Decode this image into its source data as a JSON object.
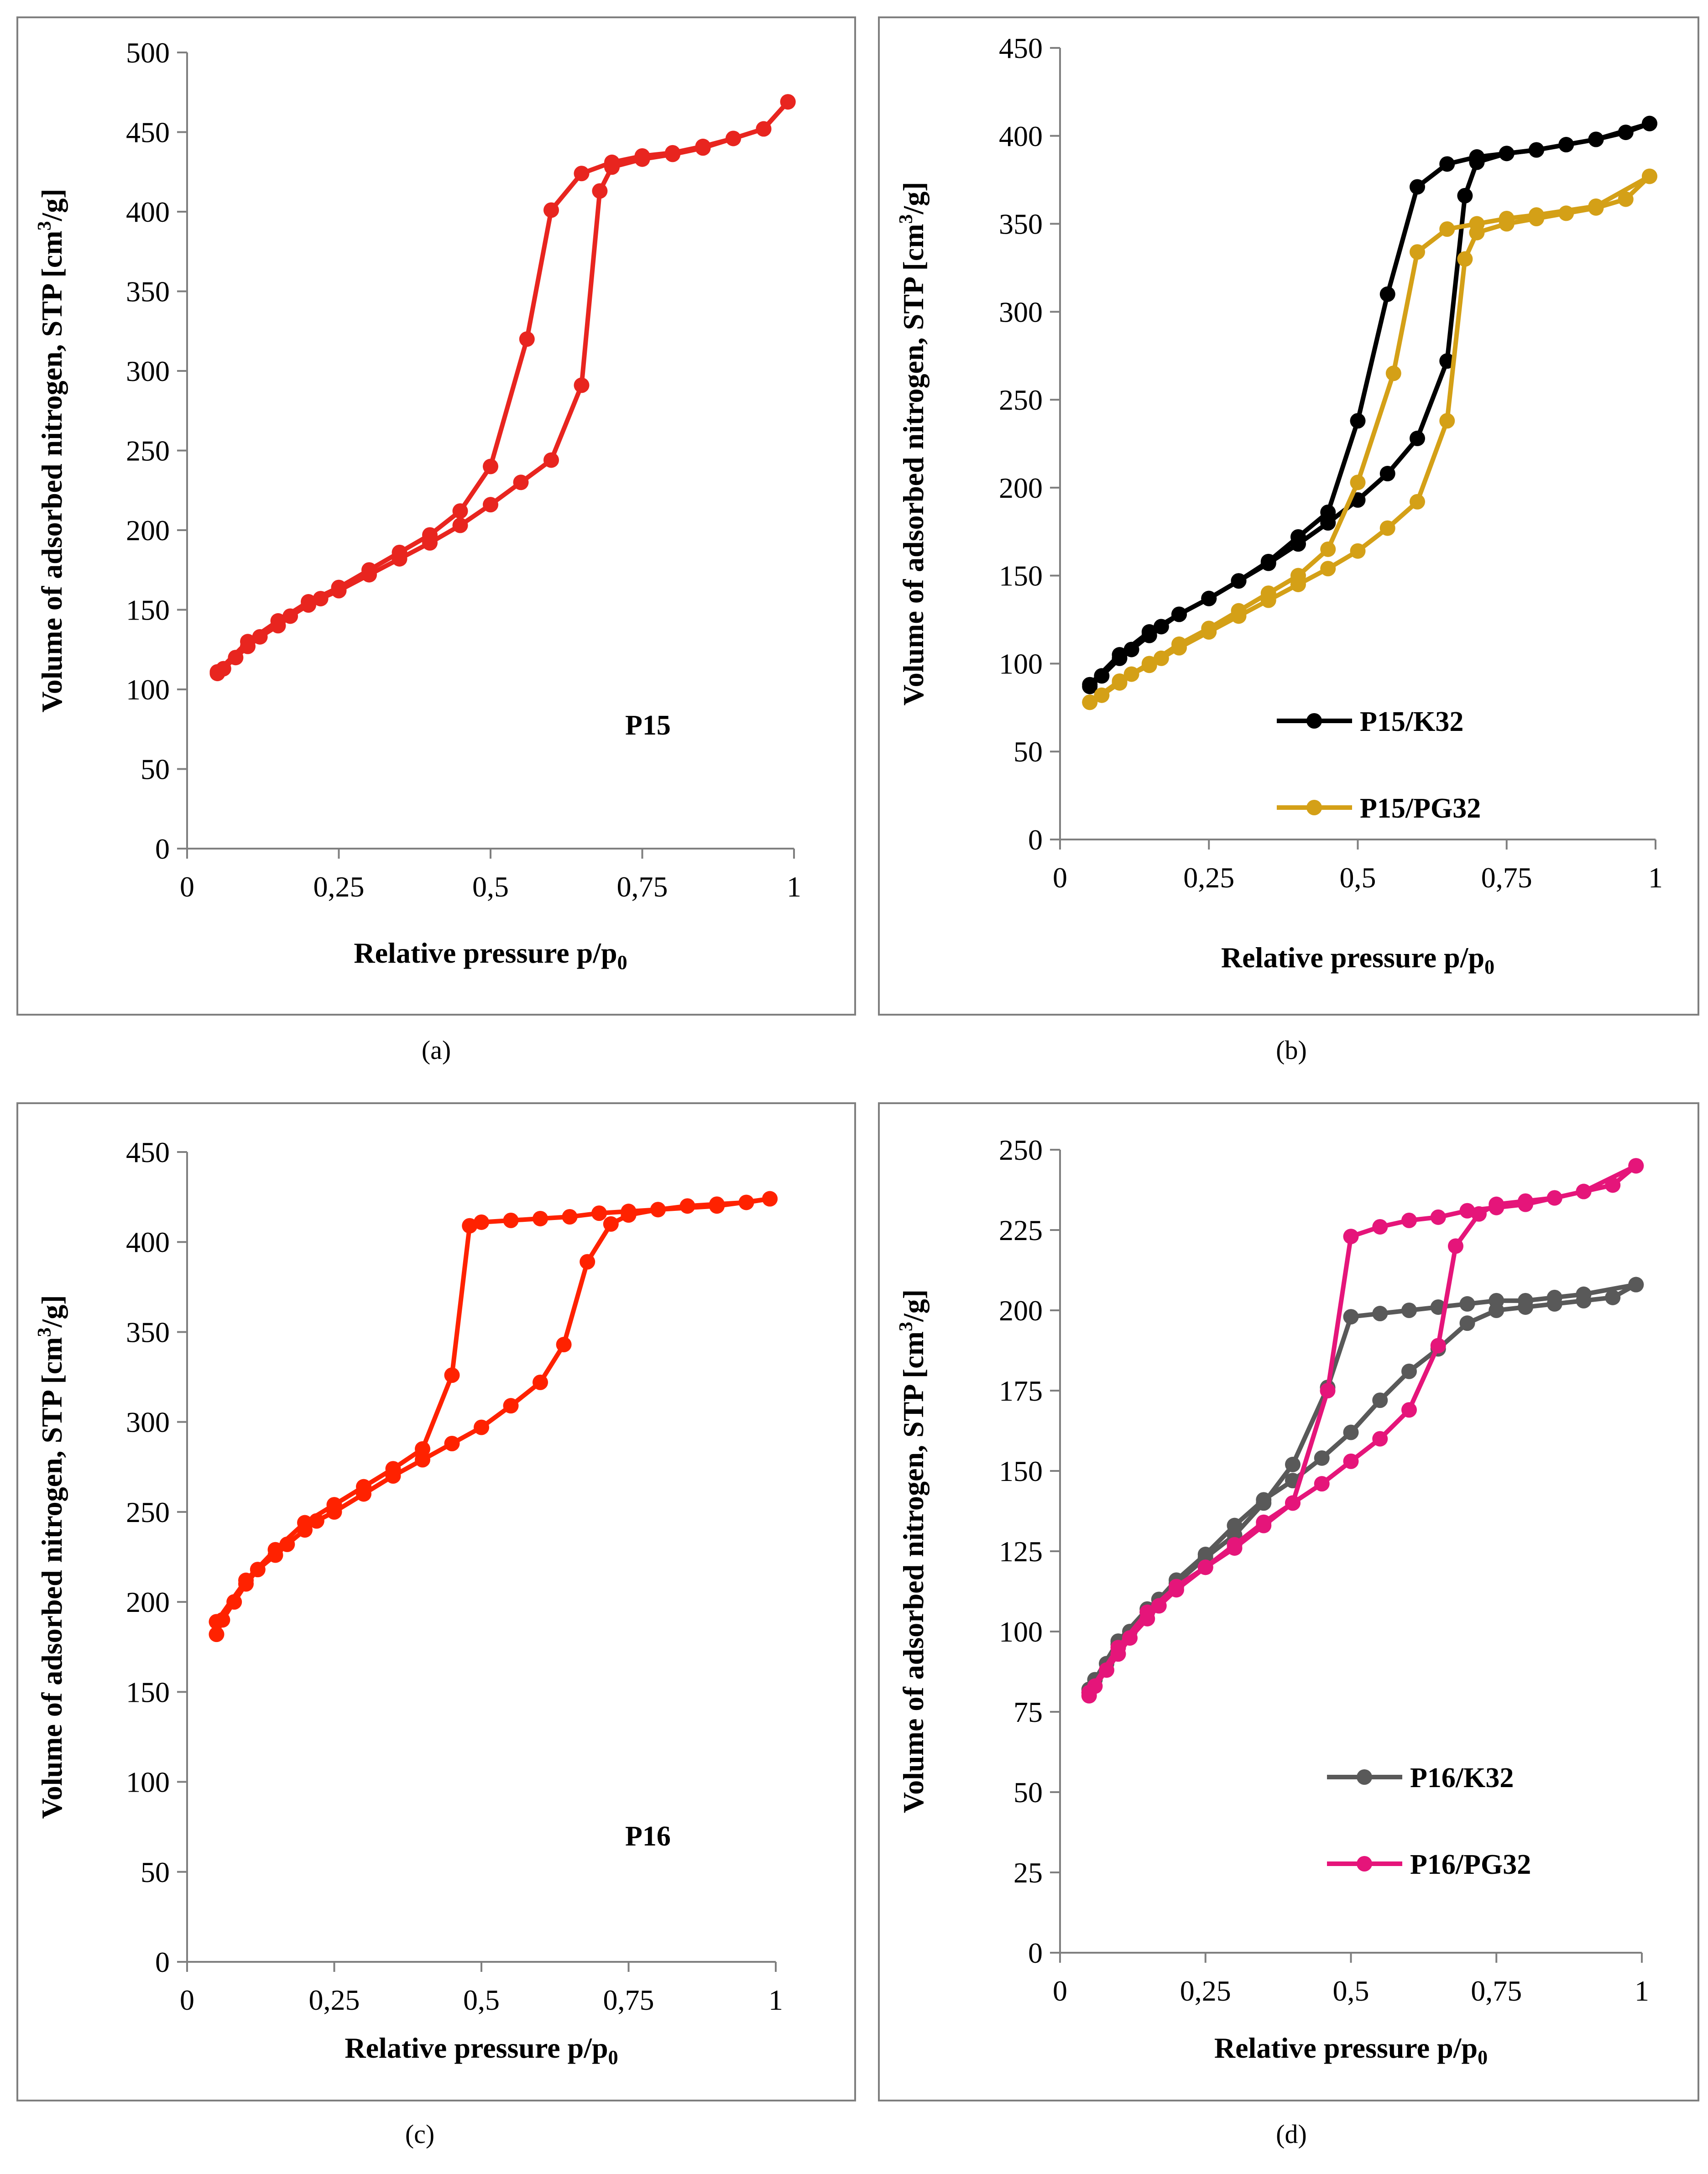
{
  "figure": {
    "captions": [
      "(a)",
      "(b)",
      "(c)",
      "(d)"
    ]
  },
  "chart_data": [
    {
      "id": "a",
      "type": "line",
      "xlabel": "Relative pressure p/p",
      "xlabel_sub": "0",
      "ylabel": "Volume of adsorbed nitrogen, STP [cm",
      "ylabel_sup": "3",
      "ylabel_end": "/g]",
      "xlim": [
        0,
        1
      ],
      "ylim": [
        0,
        500
      ],
      "xticks": [
        0,
        0.25,
        0.5,
        0.75,
        1
      ],
      "xtick_labels": [
        "0",
        "0,25",
        "0,5",
        "0,75",
        "1"
      ],
      "yticks": [
        0,
        50,
        100,
        150,
        200,
        250,
        300,
        350,
        400,
        450,
        500
      ],
      "ytick_labels": [
        "0",
        "50",
        "100",
        "150",
        "200",
        "250",
        "300",
        "350",
        "400",
        "450",
        "500"
      ],
      "annotation": "P15",
      "legend": false,
      "series": [
        {
          "name": "P15",
          "color": "#e8251f",
          "adsorption": {
            "x": [
              0.05,
              0.06,
              0.08,
              0.1,
              0.12,
              0.15,
              0.17,
              0.2,
              0.22,
              0.25,
              0.3,
              0.35,
              0.4,
              0.45,
              0.5,
              0.55,
              0.6,
              0.65,
              0.68,
              0.7,
              0.75,
              0.8,
              0.85,
              0.9,
              0.95,
              0.99
            ],
            "y": [
              110,
              113,
              120,
              127,
              133,
              140,
              146,
              153,
              157,
              162,
              172,
              182,
              192,
              203,
              216,
              230,
              244,
              291,
              413,
              428,
              433,
              436,
              440,
              446,
              452,
              469
            ]
          },
          "desorption": {
            "x": [
              0.99,
              0.95,
              0.9,
              0.85,
              0.8,
              0.75,
              0.7,
              0.65,
              0.6,
              0.56,
              0.5,
              0.45,
              0.4,
              0.35,
              0.3,
              0.25,
              0.2,
              0.15,
              0.1,
              0.05
            ],
            "y": [
              469,
              452,
              446,
              441,
              437,
              435,
              431,
              424,
              401,
              320,
              240,
              212,
              197,
              186,
              175,
              164,
              155,
              143,
              130,
              111
            ]
          }
        }
      ]
    },
    {
      "id": "b",
      "type": "line",
      "xlabel": "Relative pressure p/p",
      "xlabel_sub": "0",
      "ylabel": "Volume of adsorbed nitrogen, STP [cm",
      "ylabel_sup": "3",
      "ylabel_end": "/g]",
      "xlim": [
        0,
        1
      ],
      "ylim": [
        0,
        450
      ],
      "xticks": [
        0,
        0.25,
        0.5,
        0.75,
        1
      ],
      "xtick_labels": [
        "0",
        "0,25",
        "0,5",
        "0,75",
        "1"
      ],
      "yticks": [
        0,
        50,
        100,
        150,
        200,
        250,
        300,
        350,
        400,
        450
      ],
      "ytick_labels": [
        "0",
        "50",
        "100",
        "150",
        "200",
        "250",
        "300",
        "350",
        "400",
        "450"
      ],
      "legend": true,
      "series": [
        {
          "name": "P15/K32",
          "color": "#000000",
          "adsorption": {
            "x": [
              0.05,
              0.07,
              0.1,
              0.12,
              0.15,
              0.17,
              0.2,
              0.25,
              0.3,
              0.35,
              0.4,
              0.45,
              0.5,
              0.55,
              0.6,
              0.65,
              0.68,
              0.7,
              0.75,
              0.8,
              0.85,
              0.9,
              0.95,
              0.99
            ],
            "y": [
              87,
              93,
              103,
              108,
              116,
              121,
              128,
              137,
              147,
              157,
              168,
              180,
              193,
              208,
              228,
              272,
              366,
              385,
              390,
              392,
              395,
              398,
              402,
              407
            ]
          },
          "desorption": {
            "x": [
              0.99,
              0.9,
              0.8,
              0.7,
              0.65,
              0.6,
              0.55,
              0.5,
              0.45,
              0.4,
              0.35,
              0.3,
              0.25,
              0.2,
              0.15,
              0.1,
              0.05
            ],
            "y": [
              407,
              398,
              392,
              388,
              384,
              371,
              310,
              238,
              186,
              172,
              158,
              147,
              137,
              128,
              118,
              105,
              88
            ]
          }
        },
        {
          "name": "P15/PG32",
          "color": "#d4a017",
          "adsorption": {
            "x": [
              0.05,
              0.07,
              0.1,
              0.12,
              0.15,
              0.17,
              0.2,
              0.25,
              0.3,
              0.35,
              0.4,
              0.45,
              0.5,
              0.55,
              0.6,
              0.65,
              0.68,
              0.7,
              0.75,
              0.8,
              0.85,
              0.9,
              0.95,
              0.99
            ],
            "y": [
              78,
              82,
              89,
              94,
              99,
              103,
              109,
              118,
              127,
              136,
              145,
              154,
              164,
              177,
              192,
              238,
              330,
              345,
              350,
              353,
              356,
              359,
              364,
              377
            ]
          },
          "desorption": {
            "x": [
              0.99,
              0.9,
              0.8,
              0.75,
              0.7,
              0.65,
              0.6,
              0.56,
              0.5,
              0.45,
              0.4,
              0.35,
              0.3,
              0.25,
              0.2,
              0.15,
              0.1,
              0.05
            ],
            "y": [
              377,
              360,
              355,
              353,
              350,
              347,
              334,
              265,
              203,
              165,
              150,
              140,
              130,
              120,
              111,
              100,
              90,
              78
            ]
          }
        }
      ]
    },
    {
      "id": "c",
      "type": "line",
      "xlabel": "Relative pressure p/p",
      "xlabel_sub": "0",
      "ylabel": "Volume of adsorbed nitrogen, STP [cm",
      "ylabel_sup": "3",
      "ylabel_end": "/g]",
      "xlim": [
        0,
        1
      ],
      "ylim": [
        0,
        450
      ],
      "xticks": [
        0,
        0.25,
        0.5,
        0.75,
        1
      ],
      "xtick_labels": [
        "0",
        "0,25",
        "0,5",
        "0,75",
        "1"
      ],
      "yticks": [
        0,
        50,
        100,
        150,
        200,
        250,
        300,
        350,
        400,
        450
      ],
      "ytick_labels": [
        "0",
        "50",
        "100",
        "150",
        "200",
        "250",
        "300",
        "350",
        "400",
        "450"
      ],
      "annotation": "P16",
      "legend": false,
      "series": [
        {
          "name": "P16",
          "color": "#ff2200",
          "adsorption": {
            "x": [
              0.05,
              0.06,
              0.08,
              0.1,
              0.12,
              0.15,
              0.17,
              0.2,
              0.22,
              0.25,
              0.3,
              0.35,
              0.4,
              0.45,
              0.5,
              0.55,
              0.6,
              0.64,
              0.68,
              0.72,
              0.75,
              0.8,
              0.85,
              0.9,
              0.95,
              0.99
            ],
            "y": [
              182,
              190,
              200,
              210,
              218,
              226,
              232,
              240,
              245,
              250,
              260,
              270,
              279,
              288,
              297,
              309,
              322,
              343,
              389,
              410,
              415,
              418,
              420,
              421,
              422,
              424
            ]
          },
          "desorption": {
            "x": [
              0.99,
              0.9,
              0.8,
              0.75,
              0.7,
              0.65,
              0.6,
              0.55,
              0.5,
              0.48,
              0.45,
              0.4,
              0.35,
              0.3,
              0.25,
              0.2,
              0.15,
              0.1,
              0.05
            ],
            "y": [
              424,
              420,
              418,
              417,
              416,
              414,
              413,
              412,
              411,
              409,
              326,
              285,
              274,
              264,
              254,
              244,
              229,
              212,
              189
            ]
          }
        }
      ]
    },
    {
      "id": "d",
      "type": "line",
      "xlabel": "Relative pressure p/p",
      "xlabel_sub": "0",
      "ylabel": "Volume of adsorbed nitrogen, STP [cm",
      "ylabel_sup": "3",
      "ylabel_end": "/g]",
      "xlim": [
        0,
        1
      ],
      "ylim": [
        0,
        250
      ],
      "xticks": [
        0,
        0.25,
        0.5,
        0.75,
        1
      ],
      "xtick_labels": [
        "0",
        "0,25",
        "0,5",
        "0,75",
        "1"
      ],
      "yticks": [
        0,
        25,
        50,
        75,
        100,
        125,
        150,
        175,
        200,
        225,
        250
      ],
      "ytick_labels": [
        "0",
        "25",
        "50",
        "75",
        "100",
        "125",
        "150",
        "175",
        "200",
        "225",
        "250"
      ],
      "legend": true,
      "series": [
        {
          "name": "P16/K32",
          "color": "#595959",
          "adsorption": {
            "x": [
              0.05,
              0.06,
              0.08,
              0.1,
              0.12,
              0.15,
              0.17,
              0.2,
              0.25,
              0.3,
              0.35,
              0.4,
              0.45,
              0.5,
              0.55,
              0.6,
              0.65,
              0.7,
              0.75,
              0.8,
              0.85,
              0.9,
              0.95,
              0.99
            ],
            "y": [
              81,
              85,
              90,
              96,
              100,
              106,
              110,
              116,
              124,
              133,
              141,
              147,
              154,
              162,
              172,
              181,
              188,
              196,
              200,
              201,
              202,
              203,
              204,
              208
            ]
          },
          "desorption": {
            "x": [
              0.99,
              0.9,
              0.85,
              0.8,
              0.75,
              0.7,
              0.65,
              0.6,
              0.55,
              0.5,
              0.46,
              0.4,
              0.35,
              0.3,
              0.25,
              0.2,
              0.15,
              0.1,
              0.05
            ],
            "y": [
              208,
              205,
              204,
              203,
              203,
              202,
              201,
              200,
              199,
              198,
              176,
              152,
              140,
              130,
              123,
              115,
              107,
              97,
              82
            ]
          }
        },
        {
          "name": "P16/PG32",
          "color": "#e5157a",
          "adsorption": {
            "x": [
              0.05,
              0.06,
              0.08,
              0.1,
              0.12,
              0.15,
              0.17,
              0.2,
              0.25,
              0.3,
              0.35,
              0.4,
              0.45,
              0.5,
              0.55,
              0.6,
              0.65,
              0.68,
              0.72,
              0.75,
              0.8,
              0.85,
              0.9,
              0.95,
              0.99
            ],
            "y": [
              80,
              83,
              88,
              93,
              98,
              104,
              108,
              113,
              120,
              126,
              133,
              140,
              146,
              153,
              160,
              169,
              189,
              220,
              230,
              233,
              234,
              235,
              237,
              239,
              245
            ]
          },
          "desorption": {
            "x": [
              0.99,
              0.9,
              0.85,
              0.8,
              0.75,
              0.7,
              0.65,
              0.6,
              0.55,
              0.5,
              0.46,
              0.4,
              0.35,
              0.3,
              0.25,
              0.2,
              0.15,
              0.1,
              0.05
            ],
            "y": [
              245,
              237,
              235,
              233,
              232,
              231,
              229,
              228,
              226,
              223,
              175,
              140,
              134,
              127,
              120,
              114,
              106,
              95,
              81
            ]
          }
        }
      ]
    }
  ]
}
